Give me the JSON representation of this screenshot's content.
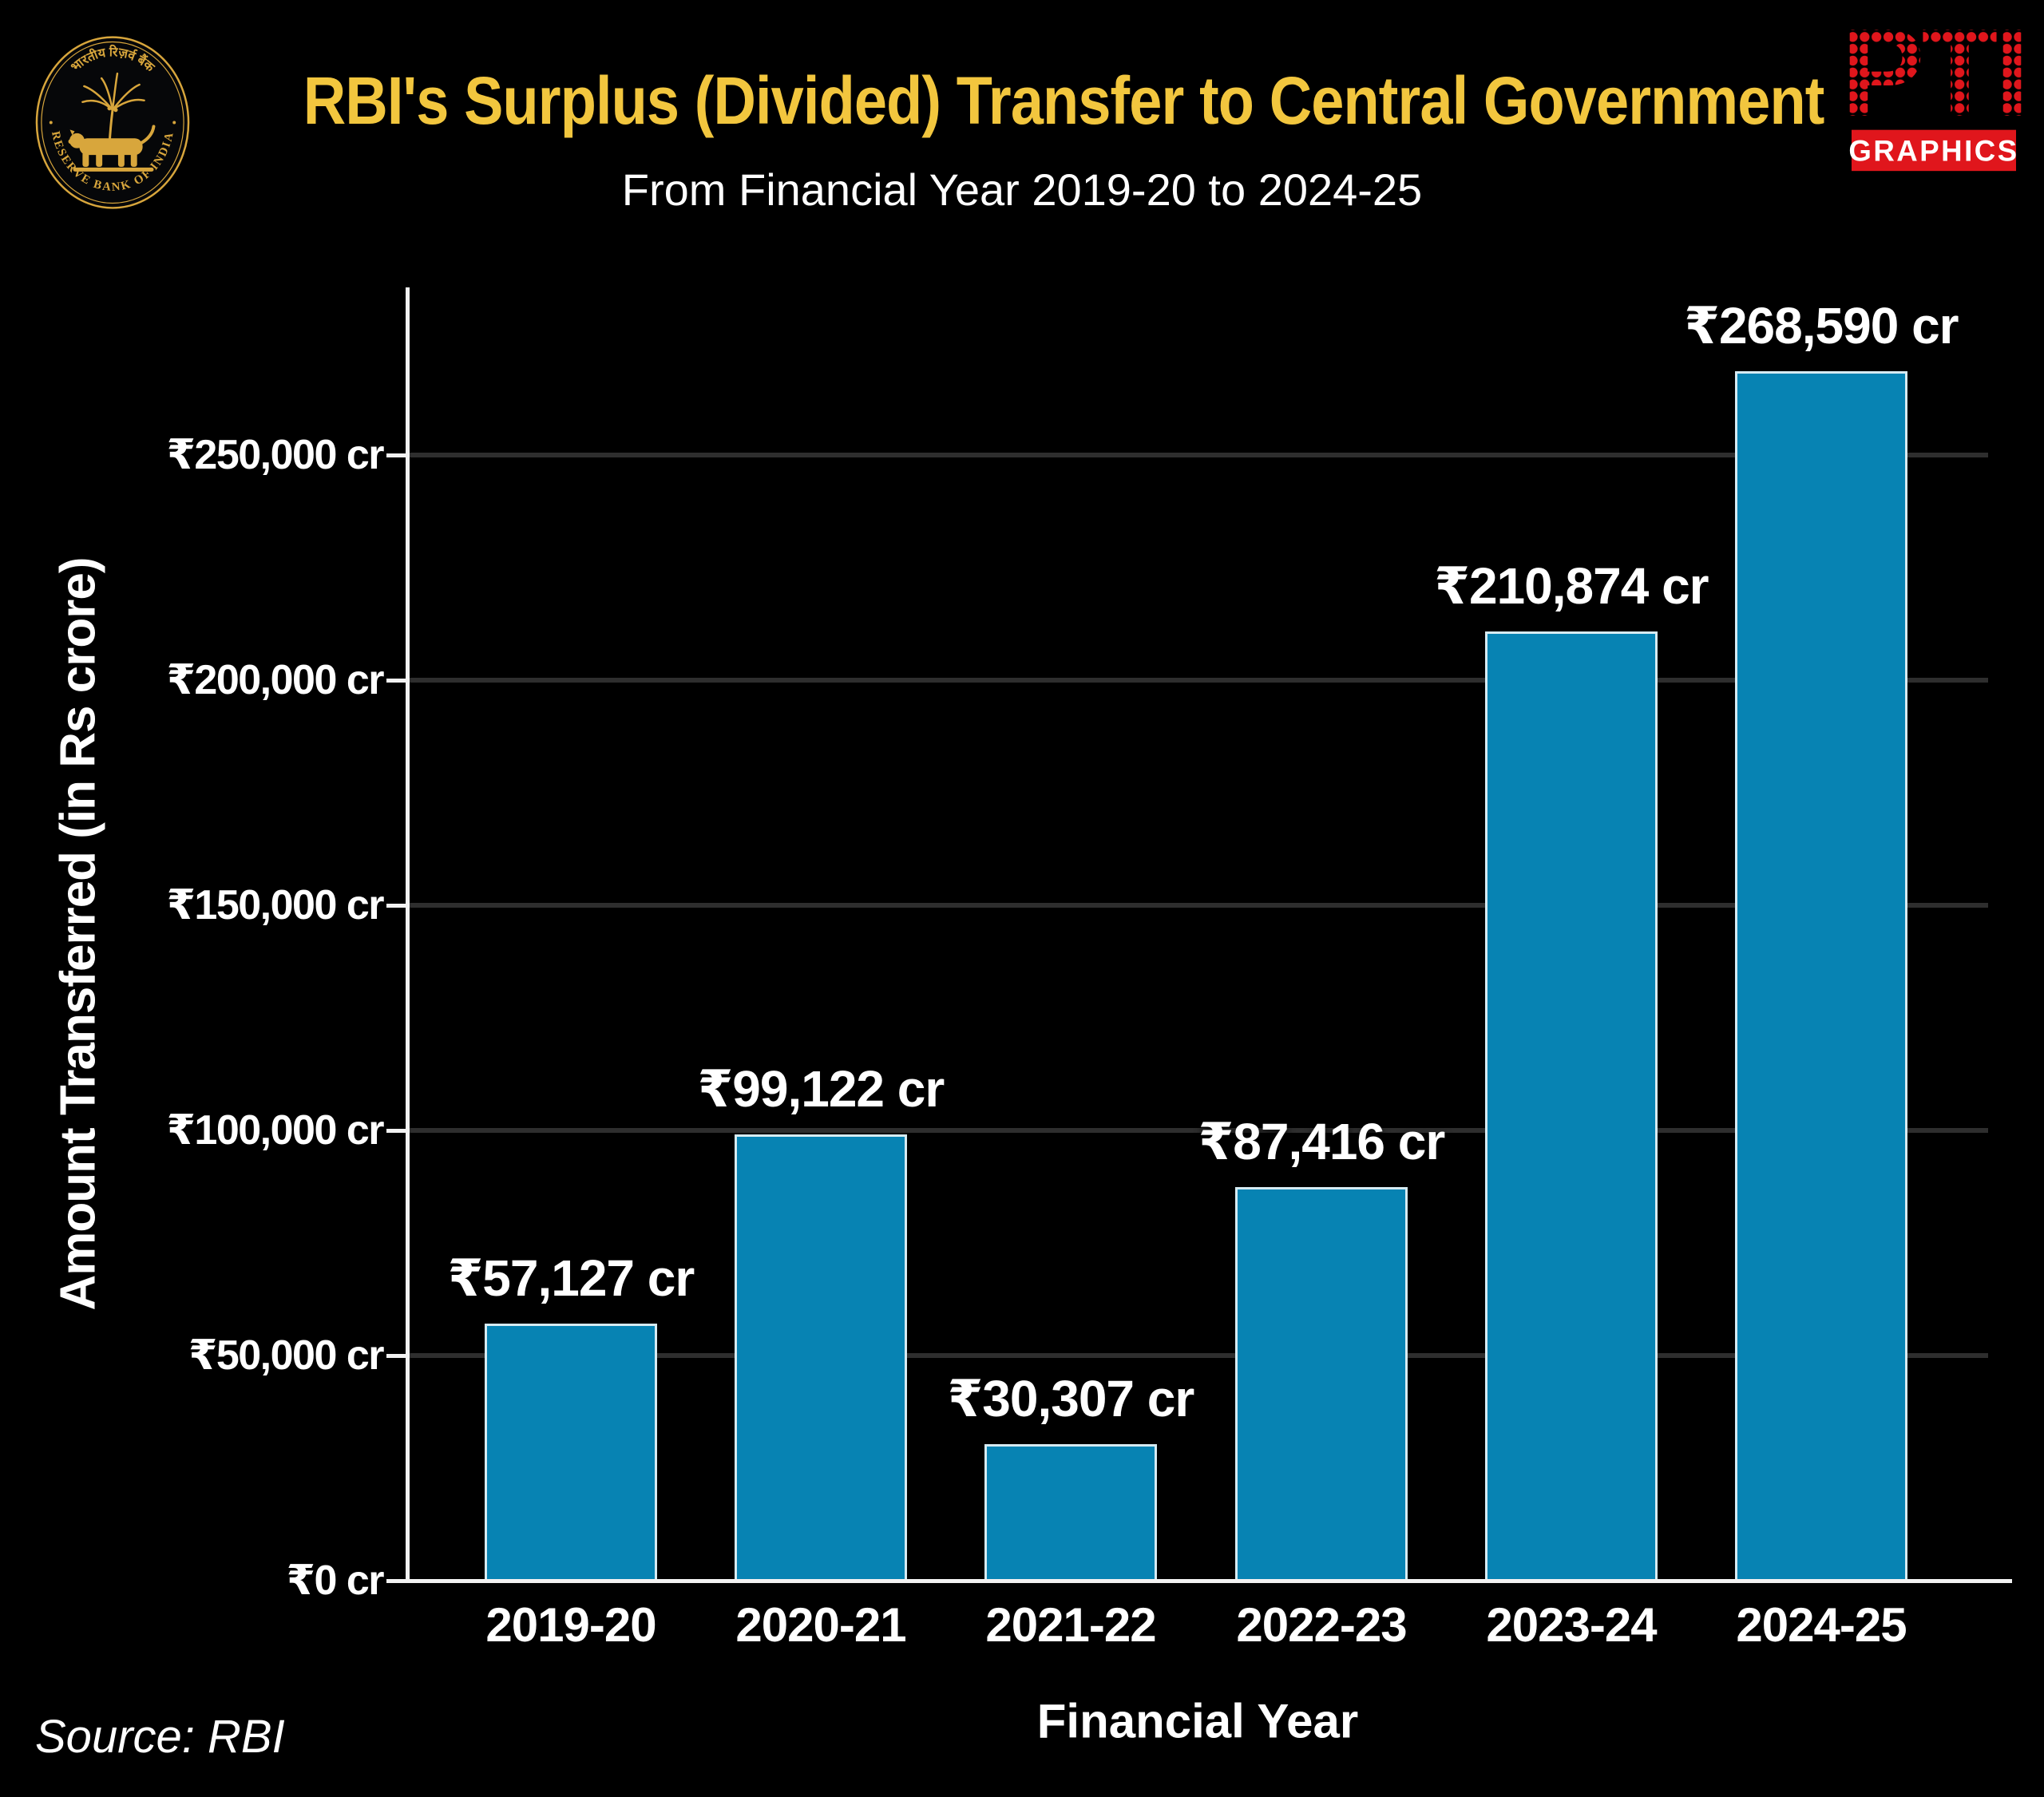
{
  "header": {
    "title": "RBI's Surplus (Divided) Transfer to Central Government",
    "subtitle": "From Financial Year 2019-20 to 2024-25",
    "title_color": "#f2c63e",
    "rbi_logo": {
      "top_text": "भारतीय रिज़र्व बैंक",
      "bottom_text": "RESERVE BANK OF INDIA",
      "gold": "#d8a63c"
    },
    "pti_logo": {
      "name": "PTI",
      "sub_label": "GRAPHICS",
      "red": "#e0161c"
    }
  },
  "chart_data": {
    "type": "bar",
    "title": "RBI's Surplus (Divided) Transfer to Central Government",
    "subtitle": "From Financial Year 2019-20 to 2024-25",
    "categories": [
      "2019-20",
      "2020-21",
      "2021-22",
      "2022-23",
      "2023-24",
      "2024-25"
    ],
    "values": [
      57127,
      99122,
      30307,
      87416,
      210874,
      268590
    ],
    "bar_labels": [
      "₹57,127 cr",
      "₹99,122 cr",
      "₹30,307 cr",
      "₹87,416 cr",
      "₹210,874 cr",
      "₹268,590 cr"
    ],
    "xlabel": "Financial Year",
    "ylabel": "Amount Transferred (in Rs crore)",
    "ylim": [
      0,
      287000
    ],
    "ytick_values": [
      0,
      50000,
      100000,
      150000,
      200000,
      250000
    ],
    "ytick_labels": [
      "₹0 cr",
      "₹50,000 cr",
      "₹100,000 cr",
      "₹150,000 cr",
      "₹200,000 cr",
      "₹250,000 cr"
    ],
    "bar_color": "#0783b3",
    "bar_border_color": "#d6ebf3",
    "grid_color": "#2e2e2e",
    "axis_color": "#f2f2f2",
    "background": "#000000",
    "grid": true,
    "legend": false
  },
  "footer": {
    "source": "Source: RBI"
  }
}
